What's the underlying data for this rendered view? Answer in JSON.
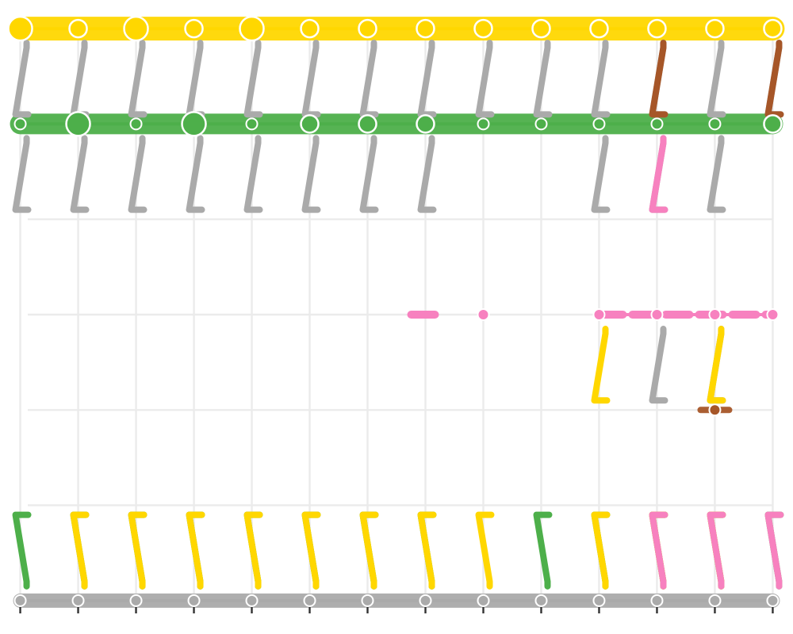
{
  "chart_data": {
    "type": "line",
    "title": "",
    "xlabel": "",
    "ylabel": "",
    "grid": true,
    "legend": "none",
    "x": [
      1,
      2,
      3,
      4,
      5,
      6,
      7,
      8,
      9,
      10,
      11,
      12,
      13,
      14
    ],
    "levels": [
      0,
      1,
      2,
      3,
      4,
      5,
      6
    ],
    "xlim": [
      0.65,
      14.35
    ],
    "ylim": [
      -0.35,
      6.3
    ],
    "colors": {
      "gray": "#aaaaaa",
      "green": "#4daf4a",
      "yellow": "#ffd700",
      "pink": "#f781bf",
      "brown": "#a65628",
      "grid": "#ebebeb",
      "tick": "#333333"
    },
    "series": [
      {
        "color": "gray",
        "level": 0,
        "values": [
          1,
          1,
          1,
          1,
          1,
          1,
          1,
          1,
          1,
          1,
          1,
          1,
          1,
          1
        ]
      },
      {
        "color": "green",
        "level": 5,
        "values": [
          1,
          1,
          1,
          1,
          1,
          1,
          1,
          1,
          1,
          1,
          1,
          1,
          1,
          1
        ]
      },
      {
        "color": "yellow",
        "level": 6,
        "values": [
          1,
          1,
          1,
          1,
          1,
          1,
          1,
          1,
          1,
          1,
          1,
          1,
          1,
          1
        ]
      },
      {
        "color": "pink",
        "level": 3,
        "values": [
          0,
          0,
          0,
          0,
          0,
          0,
          0,
          1,
          0,
          0,
          1,
          1,
          1,
          1
        ]
      },
      {
        "color": "brown",
        "level": 2,
        "values": [
          0,
          0,
          0,
          0,
          0,
          0,
          0,
          0,
          0,
          0,
          0,
          0,
          1,
          0
        ]
      }
    ],
    "points": [
      {
        "x": 1,
        "level": 6,
        "color": "yellow",
        "size": 2
      },
      {
        "x": 2,
        "level": 6,
        "color": "yellow",
        "size": 1
      },
      {
        "x": 3,
        "level": 6,
        "color": "yellow",
        "size": 2
      },
      {
        "x": 4,
        "level": 6,
        "color": "yellow",
        "size": 1
      },
      {
        "x": 5,
        "level": 6,
        "color": "yellow",
        "size": 2
      },
      {
        "x": 6,
        "level": 6,
        "color": "yellow",
        "size": 1
      },
      {
        "x": 7,
        "level": 6,
        "color": "yellow",
        "size": 1
      },
      {
        "x": 8,
        "level": 6,
        "color": "yellow",
        "size": 1
      },
      {
        "x": 9,
        "level": 6,
        "color": "yellow",
        "size": 1
      },
      {
        "x": 10,
        "level": 6,
        "color": "yellow",
        "size": 1
      },
      {
        "x": 11,
        "level": 6,
        "color": "yellow",
        "size": 1
      },
      {
        "x": 12,
        "level": 6,
        "color": "yellow",
        "size": 1
      },
      {
        "x": 13,
        "level": 6,
        "color": "yellow",
        "size": 1
      },
      {
        "x": 14,
        "level": 6,
        "color": "yellow",
        "size": 1
      },
      {
        "x": 1,
        "level": 5,
        "color": "green",
        "size": 0
      },
      {
        "x": 2,
        "level": 5,
        "color": "green",
        "size": 2
      },
      {
        "x": 3,
        "level": 5,
        "color": "green",
        "size": 0
      },
      {
        "x": 4,
        "level": 5,
        "color": "green",
        "size": 2
      },
      {
        "x": 5,
        "level": 5,
        "color": "green",
        "size": 0
      },
      {
        "x": 6,
        "level": 5,
        "color": "green",
        "size": 1
      },
      {
        "x": 7,
        "level": 5,
        "color": "green",
        "size": 1
      },
      {
        "x": 8,
        "level": 5,
        "color": "green",
        "size": 1
      },
      {
        "x": 9,
        "level": 5,
        "color": "green",
        "size": 0
      },
      {
        "x": 10,
        "level": 5,
        "color": "green",
        "size": 0
      },
      {
        "x": 11,
        "level": 5,
        "color": "green",
        "size": 0
      },
      {
        "x": 12,
        "level": 5,
        "color": "green",
        "size": 0
      },
      {
        "x": 13,
        "level": 5,
        "color": "green",
        "size": 0
      },
      {
        "x": 14,
        "level": 5,
        "color": "green",
        "size": 1
      },
      {
        "x": 1,
        "level": 0,
        "color": "gray",
        "size": 0
      },
      {
        "x": 2,
        "level": 0,
        "color": "gray",
        "size": 0
      },
      {
        "x": 3,
        "level": 0,
        "color": "gray",
        "size": 0
      },
      {
        "x": 4,
        "level": 0,
        "color": "gray",
        "size": 0
      },
      {
        "x": 5,
        "level": 0,
        "color": "gray",
        "size": 0
      },
      {
        "x": 6,
        "level": 0,
        "color": "gray",
        "size": 0
      },
      {
        "x": 7,
        "level": 0,
        "color": "gray",
        "size": 0
      },
      {
        "x": 8,
        "level": 0,
        "color": "gray",
        "size": 0
      },
      {
        "x": 9,
        "level": 0,
        "color": "gray",
        "size": 0
      },
      {
        "x": 10,
        "level": 0,
        "color": "gray",
        "size": 0
      },
      {
        "x": 11,
        "level": 0,
        "color": "gray",
        "size": 0
      },
      {
        "x": 12,
        "level": 0,
        "color": "gray",
        "size": 0
      },
      {
        "x": 13,
        "level": 0,
        "color": "gray",
        "size": 0
      },
      {
        "x": 14,
        "level": 0,
        "color": "gray",
        "size": 0
      },
      {
        "x": 9,
        "level": 3,
        "color": "pink",
        "size": 0
      },
      {
        "x": 11,
        "level": 3,
        "color": "pink",
        "size": 0
      },
      {
        "x": 12,
        "level": 3,
        "color": "pink",
        "size": 0
      },
      {
        "x": 13,
        "level": 3,
        "color": "pink",
        "size": 0
      },
      {
        "x": 14,
        "level": 3,
        "color": "pink",
        "size": 0
      },
      {
        "x": 13,
        "level": 2,
        "color": "brown",
        "size": 0
      }
    ],
    "links": [
      {
        "color": "gray",
        "from": 6,
        "to": 5,
        "x": [
          1,
          2,
          3,
          4,
          5,
          6,
          7,
          8,
          9,
          10,
          11,
          12,
          13,
          14
        ]
      },
      {
        "color": "gray",
        "from": 5,
        "to": 4,
        "x": [
          1,
          2,
          3,
          4,
          5,
          6,
          7,
          8,
          11,
          12,
          13
        ]
      },
      {
        "color": "gray",
        "from": 3,
        "to": 2,
        "x": [
          12,
          13
        ]
      },
      {
        "color": "green",
        "from": 0,
        "to": 1,
        "x": [
          1,
          2,
          3,
          4,
          5,
          6,
          7,
          8,
          10,
          11,
          12,
          13,
          14
        ]
      },
      {
        "color": "yellow",
        "from": 0,
        "to": 1,
        "x": [
          2,
          3,
          4,
          5,
          6,
          7,
          8,
          9,
          11,
          12,
          13
        ]
      },
      {
        "color": "yellow",
        "from": 3,
        "to": 2,
        "x": [
          11,
          13
        ]
      },
      {
        "color": "brown",
        "from": 6,
        "to": 5,
        "x": [
          12,
          14
        ]
      },
      {
        "color": "pink",
        "from": 0,
        "to": 1,
        "x": [
          12,
          13,
          14
        ]
      },
      {
        "color": "pink",
        "from": 5,
        "to": 4,
        "x": [
          12
        ]
      }
    ]
  }
}
